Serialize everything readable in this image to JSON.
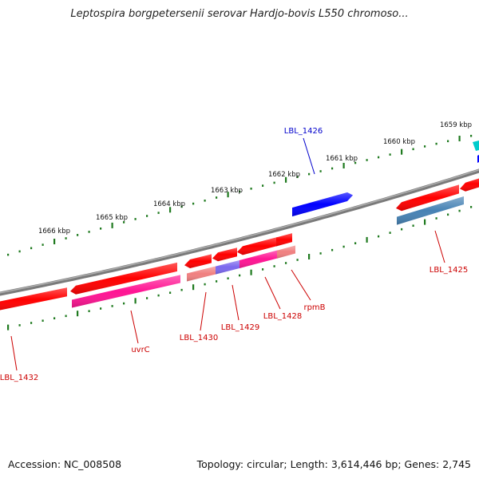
{
  "header": {
    "title": "Leptospira borgpetersenii serovar Hardjo-bovis L550 chromoso..."
  },
  "footer": {
    "accession": "Accession: NC_008508",
    "summary": "Topology: circular; Length: 3,614,446 bp; Genes: 2,745"
  },
  "colors": {
    "backbone": "#808080",
    "tick": "#1f7a1f",
    "forward_label": "#0000cc",
    "reverse_label": "#cc0000"
  },
  "kbp_labels": [
    "1666 kbp",
    "1665 kbp",
    "1664 kbp",
    "1663 kbp",
    "1662 kbp",
    "1661 kbp",
    "1660 kbp",
    "1659 kbp"
  ],
  "genes": [
    {
      "name": "LBL_1432",
      "strand": "reverse",
      "cds_color": "#ff0000",
      "feature_color": "#ff0000"
    },
    {
      "name": "uvrC",
      "strand": "reverse",
      "cds_color": "#ff0000",
      "feature_color": "#ff1493"
    },
    {
      "name": "LBL_1430",
      "strand": "reverse",
      "cds_color": "#ff0000",
      "feature_color": "#f08080"
    },
    {
      "name": "LBL_1429",
      "strand": "reverse",
      "cds_color": "#ff0000",
      "feature_color": "#7b68ee"
    },
    {
      "name": "LBL_1428",
      "strand": "reverse",
      "cds_color": "#ff0000",
      "feature_color": "#ff1493"
    },
    {
      "name": "rpmB",
      "strand": "reverse",
      "cds_color": "#ff0000",
      "feature_color": "#f08080"
    },
    {
      "name": "LBL_1426",
      "strand": "forward",
      "cds_color": "#0000ff"
    },
    {
      "name": "LBL_1425",
      "strand": "reverse",
      "cds_color": "#ff0000",
      "feature_color": "#4682b4"
    }
  ]
}
